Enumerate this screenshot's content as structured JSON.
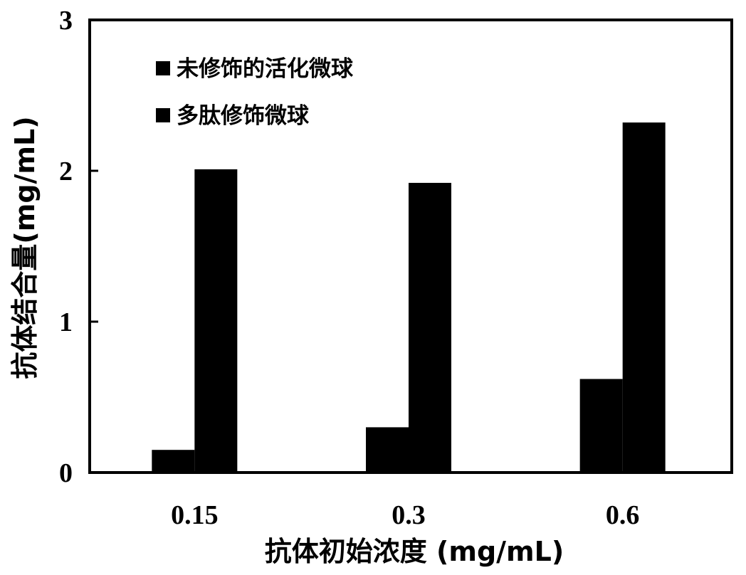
{
  "chart_data": {
    "type": "bar",
    "categories": [
      "0.15",
      "0.3",
      "0.6"
    ],
    "series": [
      {
        "name": "未修饰的活化微球",
        "values": [
          0.15,
          0.3,
          0.62
        ],
        "color": "#000000"
      },
      {
        "name": "多肽修饰微球",
        "values": [
          2.01,
          1.92,
          2.32
        ],
        "color": "#000000"
      }
    ],
    "xlabel": "抗体初始浓度 (mg/mL)",
    "ylabel": "抗体结合量(mg/mL)",
    "ylim": [
      0,
      3
    ],
    "yticks": [
      "0",
      "1",
      "2",
      "3"
    ],
    "grid": false,
    "legend_position": "top-left"
  }
}
